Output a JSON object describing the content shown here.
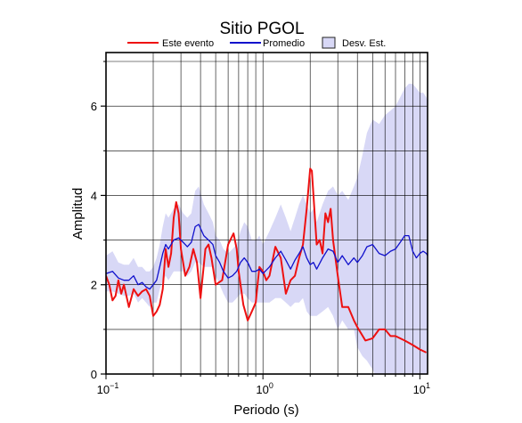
{
  "chart_data": {
    "type": "line",
    "title": "Sitio PGOL",
    "xlabel": "Periodo (s)",
    "ylabel": "Amplitud",
    "xscale": "log",
    "xlim": [
      0.1,
      11.2
    ],
    "ylim": [
      0,
      7.2
    ],
    "grid": true,
    "legend_position": "top",
    "x_ticks": [
      {
        "value": 0.1,
        "base": "10",
        "exp": "−1"
      },
      {
        "value": 1,
        "label": "10",
        "exp": "0"
      },
      {
        "value": 10,
        "label": "10",
        "exp": "1"
      }
    ],
    "y_ticks": [
      0,
      2,
      4,
      6
    ],
    "legend": {
      "este_evento": "Este evento",
      "promedio": "Promedio",
      "desv_est": "Desv. Est."
    },
    "colors": {
      "este_evento": "#ee1111",
      "promedio": "#1111cc",
      "band_fill": "#d8d8f6",
      "band_edge": "#222222"
    },
    "series": [
      {
        "name": "Este evento",
        "key": "este_evento",
        "x": [
          0.1,
          0.105,
          0.11,
          0.115,
          0.12,
          0.125,
          0.13,
          0.14,
          0.15,
          0.16,
          0.17,
          0.18,
          0.19,
          0.2,
          0.21,
          0.22,
          0.23,
          0.24,
          0.25,
          0.26,
          0.27,
          0.28,
          0.29,
          0.3,
          0.32,
          0.34,
          0.36,
          0.38,
          0.4,
          0.43,
          0.45,
          0.47,
          0.5,
          0.55,
          0.6,
          0.65,
          0.68,
          0.7,
          0.75,
          0.8,
          0.85,
          0.9,
          0.95,
          1.0,
          1.05,
          1.1,
          1.2,
          1.3,
          1.4,
          1.5,
          1.6,
          1.7,
          1.8,
          1.9,
          2.0,
          2.05,
          2.1,
          2.2,
          2.3,
          2.4,
          2.5,
          2.6,
          2.7,
          2.8,
          3.0,
          3.2,
          3.5,
          3.8,
          4.0,
          4.5,
          5.0,
          5.5,
          6.0,
          6.5,
          7.0,
          8.0,
          9.0,
          10.0,
          11.0
        ],
        "values": [
          2.2,
          2.0,
          1.65,
          1.75,
          2.1,
          1.8,
          2.0,
          1.5,
          1.9,
          1.75,
          1.85,
          1.9,
          1.75,
          1.3,
          1.4,
          1.55,
          1.9,
          2.8,
          2.4,
          2.7,
          3.5,
          3.85,
          3.6,
          2.8,
          2.2,
          2.4,
          2.8,
          2.5,
          1.7,
          2.8,
          2.9,
          2.6,
          2.0,
          2.1,
          2.9,
          3.15,
          2.8,
          2.3,
          1.55,
          1.2,
          1.4,
          1.6,
          2.4,
          2.3,
          2.1,
          2.2,
          2.85,
          2.6,
          1.8,
          2.1,
          2.2,
          2.6,
          2.9,
          3.7,
          4.6,
          4.55,
          4.0,
          2.9,
          3.0,
          2.7,
          3.6,
          3.4,
          3.7,
          3.0,
          2.2,
          1.5,
          1.5,
          1.2,
          1.05,
          0.75,
          0.8,
          1.0,
          1.0,
          0.85,
          0.85,
          0.75,
          0.65,
          0.55,
          0.48
        ]
      },
      {
        "name": "Promedio",
        "key": "promedio",
        "x": [
          0.1,
          0.11,
          0.12,
          0.13,
          0.14,
          0.15,
          0.16,
          0.17,
          0.18,
          0.19,
          0.2,
          0.21,
          0.22,
          0.23,
          0.24,
          0.25,
          0.27,
          0.29,
          0.31,
          0.33,
          0.35,
          0.37,
          0.39,
          0.42,
          0.45,
          0.48,
          0.5,
          0.53,
          0.56,
          0.6,
          0.64,
          0.68,
          0.72,
          0.76,
          0.8,
          0.85,
          0.9,
          0.95,
          1.0,
          1.1,
          1.2,
          1.3,
          1.4,
          1.5,
          1.6,
          1.7,
          1.8,
          1.9,
          2.0,
          2.1,
          2.2,
          2.4,
          2.6,
          2.8,
          3.0,
          3.2,
          3.5,
          3.8,
          4.0,
          4.3,
          4.6,
          5.0,
          5.5,
          6.0,
          6.5,
          7.0,
          7.5,
          8.0,
          8.5,
          9.0,
          9.5,
          10.0,
          10.5,
          11.0,
          11.2
        ],
        "values": [
          2.25,
          2.3,
          2.15,
          2.1,
          2.1,
          2.2,
          2.0,
          2.05,
          1.95,
          1.9,
          2.0,
          2.1,
          2.4,
          2.7,
          2.9,
          2.8,
          3.0,
          3.05,
          2.95,
          2.85,
          2.95,
          3.3,
          3.35,
          3.1,
          3.0,
          2.9,
          2.65,
          2.5,
          2.3,
          2.15,
          2.2,
          2.3,
          2.5,
          2.6,
          2.5,
          2.3,
          2.3,
          2.35,
          2.25,
          2.4,
          2.6,
          2.75,
          2.55,
          2.35,
          2.55,
          2.7,
          2.85,
          2.6,
          2.45,
          2.5,
          2.35,
          2.6,
          2.8,
          2.75,
          2.5,
          2.65,
          2.45,
          2.6,
          2.5,
          2.65,
          2.85,
          2.9,
          2.7,
          2.65,
          2.75,
          2.8,
          2.95,
          3.1,
          3.1,
          2.75,
          2.6,
          2.7,
          2.75,
          2.7,
          2.65
        ]
      }
    ],
    "band": {
      "name": "Desv. Est.",
      "key": "desv_est",
      "x": [
        0.1,
        0.11,
        0.12,
        0.13,
        0.14,
        0.15,
        0.16,
        0.17,
        0.18,
        0.19,
        0.2,
        0.21,
        0.22,
        0.23,
        0.24,
        0.25,
        0.27,
        0.29,
        0.31,
        0.33,
        0.35,
        0.37,
        0.39,
        0.42,
        0.45,
        0.48,
        0.5,
        0.53,
        0.56,
        0.6,
        0.64,
        0.68,
        0.72,
        0.76,
        0.8,
        0.85,
        0.9,
        0.95,
        1.0,
        1.1,
        1.2,
        1.3,
        1.4,
        1.5,
        1.6,
        1.7,
        1.8,
        1.9,
        2.0,
        2.1,
        2.2,
        2.4,
        2.6,
        2.8,
        3.0,
        3.2,
        3.5,
        3.8,
        4.0,
        4.3,
        4.6,
        5.0,
        5.5,
        6.0,
        6.5,
        7.0,
        7.5,
        8.0,
        8.5,
        9.0,
        9.5,
        10.0,
        10.5,
        11.0,
        11.2
      ],
      "upper": [
        2.65,
        2.75,
        2.5,
        2.45,
        2.45,
        2.6,
        2.4,
        2.4,
        2.3,
        2.3,
        2.4,
        2.6,
        2.9,
        3.3,
        3.6,
        3.5,
        3.7,
        3.8,
        3.6,
        3.5,
        3.6,
        4.1,
        4.2,
        3.8,
        3.6,
        3.4,
        3.1,
        3.0,
        2.8,
        2.7,
        2.8,
        2.9,
        3.2,
        3.4,
        3.3,
        3.0,
        3.0,
        3.1,
        2.9,
        3.2,
        3.5,
        3.8,
        3.5,
        3.2,
        3.5,
        3.8,
        4.0,
        3.8,
        3.6,
        3.7,
        3.4,
        3.8,
        4.1,
        4.2,
        4.0,
        4.1,
        3.9,
        4.2,
        4.4,
        4.9,
        5.4,
        5.7,
        5.6,
        5.8,
        5.9,
        6.0,
        6.2,
        6.4,
        6.5,
        6.5,
        6.4,
        6.3,
        6.3,
        6.2,
        6.1
      ],
      "lower": [
        1.85,
        1.85,
        1.8,
        1.75,
        1.75,
        1.8,
        1.6,
        1.7,
        1.6,
        1.5,
        1.6,
        1.6,
        1.9,
        2.1,
        2.2,
        2.1,
        2.3,
        2.3,
        2.3,
        2.2,
        2.3,
        2.5,
        2.5,
        2.4,
        2.4,
        2.4,
        2.2,
        2.0,
        1.8,
        1.6,
        1.6,
        1.7,
        1.8,
        1.8,
        1.7,
        1.6,
        1.6,
        1.6,
        1.6,
        1.6,
        1.7,
        1.7,
        1.6,
        1.5,
        1.6,
        1.6,
        1.7,
        1.4,
        1.3,
        1.3,
        1.3,
        1.4,
        1.5,
        1.3,
        1.0,
        1.2,
        1.0,
        1.0,
        0.6,
        0.4,
        0.3,
        0.1,
        -0.2,
        -0.5,
        -0.4,
        -0.4,
        -0.3,
        -0.2,
        -0.3,
        -1.0,
        -1.2,
        -0.9,
        -0.8,
        -0.8,
        -0.8
      ]
    }
  }
}
